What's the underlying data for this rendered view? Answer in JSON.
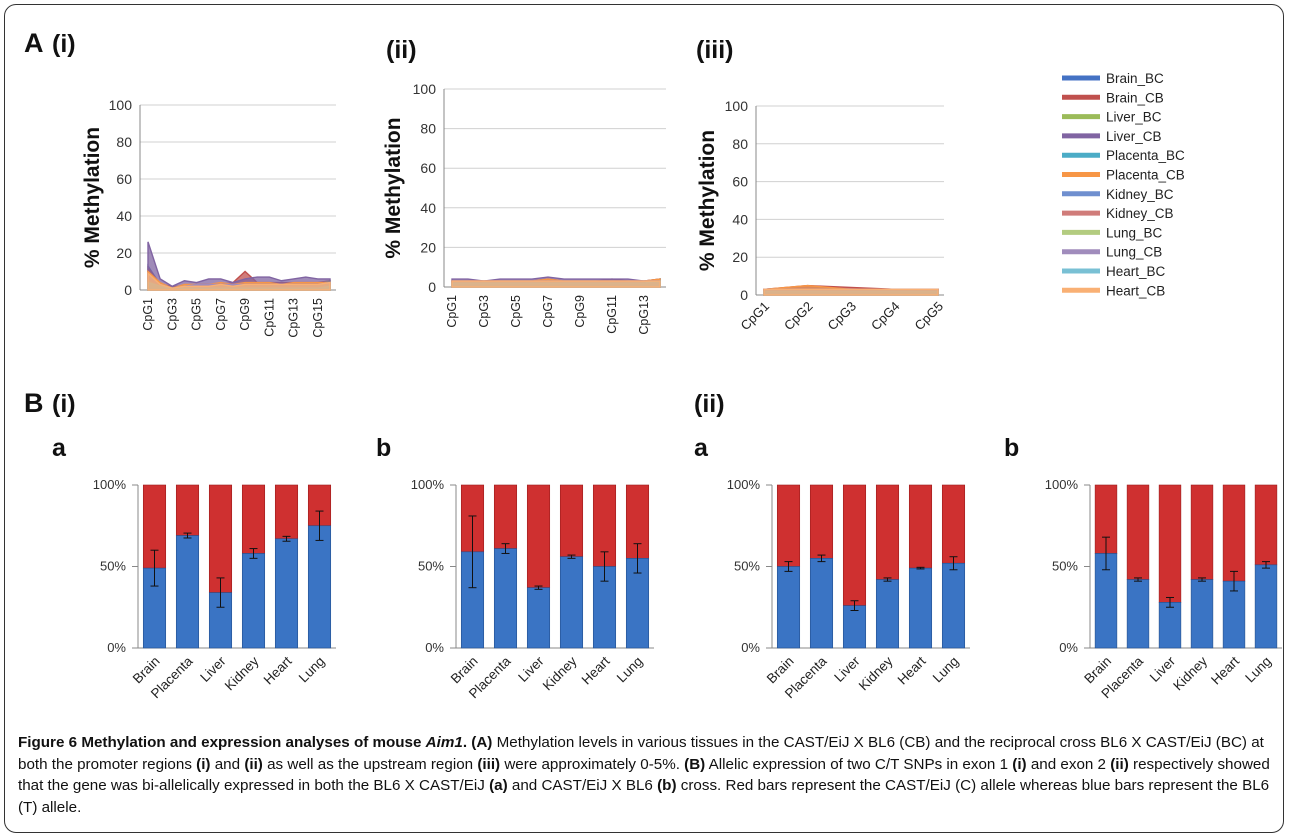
{
  "panels": {
    "A_label": "A",
    "A_i": "(i)",
    "A_ii": "(ii)",
    "A_iii": "(iii)",
    "B_label": "B",
    "B_i": "(i)",
    "B_ii": "(ii)",
    "sub_a": "a",
    "sub_b": "b"
  },
  "caption": {
    "fig": "Figure 6",
    "title_pre": "Methylation and expression analyses of mouse ",
    "title_gene": "Aim1",
    "title_post": ".",
    "A_tag": "(A)",
    "A_text1": "Methylation levels in various tissues in the CAST/EiJ X BL6 (CB) and the reciprocal cross BL6 X CAST/EiJ (BC) at both the promoter regions",
    "i_tag": "(i)",
    "and1": "and",
    "ii_tag": "(ii)",
    "A_text2": "as well as the upstream region",
    "iii_tag": "(iii)",
    "A_text3": "were approximately 0-5%.",
    "B_tag": "(B)",
    "B_text1": "Allelic expression of two C/T SNPs in exon 1",
    "i2_tag": "(i)",
    "and2": "and exon 2",
    "ii2_tag": "(ii)",
    "B_text2": "respectively showed that the gene was bi-allelically expressed in both the BL6 X CAST/EiJ",
    "a_tag": "(a)",
    "and3": "and CAST/EiJ X BL6",
    "b_tag": "(b)",
    "B_text3": "cross. Red bars represent the CAST/EiJ (C) allele whereas blue bars represent the BL6 (T) allele."
  },
  "colors": {
    "frame": "#333333",
    "grid": "#d0d0d0",
    "axis": "#888888",
    "bar_blue": "#3a74c4",
    "bar_blue_dark": "#24508f",
    "bar_red": "#cf3030",
    "bar_red_dark": "#9c1c1c"
  },
  "chart_data": [
    {
      "id": "A-i",
      "type": "area",
      "ylabel": "% Methylation",
      "ylim": [
        0,
        100
      ],
      "yticks": [
        0,
        20,
        40,
        60,
        80,
        100
      ],
      "categories": [
        "CpG1",
        "CpG2",
        "CpG3",
        "CpG4",
        "CpG5",
        "CpG6",
        "CpG7",
        "CpG8",
        "CpG9",
        "CpG10",
        "CpG11",
        "CpG12",
        "CpG13",
        "CpG14",
        "CpG15",
        "CpG16"
      ],
      "tick_labels": [
        "CpG1",
        "",
        "CpG3",
        "",
        "CpG5",
        "",
        "CpG7",
        "",
        "CpG9",
        "",
        "CpG11",
        "",
        "CpG13",
        "",
        "CpG15",
        ""
      ],
      "series": [
        {
          "name": "Brain_BC",
          "color": "#4472c4",
          "values": [
            13,
            3,
            1,
            2,
            3,
            3,
            3,
            3,
            3,
            3,
            3,
            3,
            3,
            3,
            3,
            4
          ]
        },
        {
          "name": "Brain_CB",
          "color": "#c0504d",
          "values": [
            12,
            3,
            2,
            2,
            3,
            3,
            3,
            4,
            10,
            4,
            4,
            4,
            4,
            4,
            4,
            5
          ]
        },
        {
          "name": "Liver_BC",
          "color": "#9bbb59",
          "values": [
            5,
            2,
            1,
            2,
            2,
            2,
            2,
            2,
            3,
            3,
            2,
            2,
            2,
            2,
            3,
            5
          ]
        },
        {
          "name": "Liver_CB",
          "color": "#8064a2",
          "values": [
            26,
            6,
            2,
            5,
            4,
            6,
            6,
            4,
            6,
            7,
            7,
            5,
            6,
            7,
            6,
            6
          ]
        },
        {
          "name": "Placenta_BC",
          "color": "#4bacc6",
          "values": [
            8,
            2,
            1,
            1,
            1,
            1,
            2,
            1,
            1,
            1,
            1,
            1,
            1,
            1,
            1,
            3
          ]
        },
        {
          "name": "Placenta_CB",
          "color": "#f79646",
          "values": [
            10,
            4,
            1,
            3,
            3,
            3,
            4,
            3,
            4,
            4,
            4,
            3,
            4,
            4,
            4,
            4
          ]
        },
        {
          "name": "Kidney_BC",
          "color": "#6f8fcf",
          "values": [
            6,
            3,
            1,
            2,
            2,
            2,
            3,
            2,
            3,
            3,
            3,
            3,
            3,
            3,
            3,
            4
          ]
        },
        {
          "name": "Kidney_CB",
          "color": "#d07c7a",
          "values": [
            7,
            3,
            1,
            2,
            2,
            3,
            3,
            3,
            3,
            3,
            3,
            3,
            3,
            3,
            3,
            4
          ]
        },
        {
          "name": "Lung_BC",
          "color": "#b3cc80",
          "values": [
            5,
            2,
            1,
            2,
            2,
            2,
            2,
            2,
            2,
            2,
            2,
            2,
            2,
            2,
            2,
            4
          ]
        },
        {
          "name": "Lung_CB",
          "color": "#a08cbc",
          "values": [
            8,
            3,
            1,
            2,
            3,
            3,
            3,
            3,
            3,
            3,
            3,
            3,
            3,
            3,
            3,
            4
          ]
        },
        {
          "name": "Heart_BC",
          "color": "#79c0d4",
          "values": [
            4,
            2,
            1,
            1,
            1,
            1,
            1,
            1,
            1,
            1,
            1,
            1,
            1,
            1,
            1,
            2
          ]
        },
        {
          "name": "Heart_CB",
          "color": "#f9b074",
          "values": [
            9,
            3,
            1,
            2,
            2,
            2,
            3,
            2,
            3,
            3,
            3,
            3,
            3,
            3,
            3,
            4
          ]
        }
      ]
    },
    {
      "id": "A-ii",
      "type": "area",
      "ylabel": "% Methylation",
      "ylim": [
        0,
        100
      ],
      "yticks": [
        0,
        20,
        40,
        60,
        80,
        100
      ],
      "categories": [
        "CpG1",
        "CpG2",
        "CpG3",
        "CpG4",
        "CpG5",
        "CpG6",
        "CpG7",
        "CpG8",
        "CpG9",
        "CpG10",
        "CpG11",
        "CpG12",
        "CpG13",
        "CpG14"
      ],
      "tick_labels": [
        "CpG1",
        "",
        "CpG3",
        "",
        "CpG5",
        "",
        "CpG7",
        "",
        "CpG9",
        "",
        "CpG11",
        "",
        "CpG13",
        ""
      ],
      "series": [
        {
          "name": "Brain_BC",
          "color": "#4472c4",
          "values": [
            3,
            3,
            3,
            3,
            3,
            3,
            4,
            3,
            3,
            3,
            3,
            3,
            3,
            3
          ]
        },
        {
          "name": "Brain_CB",
          "color": "#c0504d",
          "values": [
            3,
            3,
            3,
            3,
            3,
            3,
            4,
            3,
            3,
            3,
            4,
            3,
            3,
            4
          ]
        },
        {
          "name": "Liver_BC",
          "color": "#9bbb59",
          "values": [
            2,
            2,
            2,
            2,
            2,
            2,
            3,
            2,
            2,
            2,
            2,
            2,
            2,
            3
          ]
        },
        {
          "name": "Liver_CB",
          "color": "#8064a2",
          "values": [
            4,
            4,
            3,
            4,
            4,
            4,
            5,
            4,
            4,
            4,
            4,
            4,
            3,
            4
          ]
        },
        {
          "name": "Placenta_BC",
          "color": "#4bacc6",
          "values": [
            2,
            2,
            2,
            2,
            2,
            2,
            3,
            2,
            2,
            2,
            2,
            2,
            2,
            4
          ]
        },
        {
          "name": "Placenta_CB",
          "color": "#f79646",
          "values": [
            3,
            3,
            3,
            3,
            3,
            3,
            4,
            3,
            3,
            3,
            3,
            3,
            3,
            4
          ]
        },
        {
          "name": "Kidney_BC",
          "color": "#6f8fcf",
          "values": [
            3,
            3,
            2,
            3,
            3,
            3,
            3,
            3,
            3,
            3,
            3,
            3,
            3,
            3
          ]
        },
        {
          "name": "Kidney_CB",
          "color": "#d07c7a",
          "values": [
            3,
            3,
            3,
            3,
            3,
            3,
            3,
            3,
            3,
            3,
            3,
            3,
            3,
            3
          ]
        },
        {
          "name": "Lung_BC",
          "color": "#b3cc80",
          "values": [
            2,
            2,
            2,
            2,
            2,
            2,
            3,
            2,
            2,
            2,
            2,
            2,
            2,
            3
          ]
        },
        {
          "name": "Lung_CB",
          "color": "#a08cbc",
          "values": [
            3,
            3,
            3,
            3,
            3,
            3,
            3,
            3,
            3,
            3,
            3,
            3,
            3,
            3
          ]
        },
        {
          "name": "Heart_BC",
          "color": "#79c0d4",
          "values": [
            2,
            2,
            2,
            2,
            2,
            2,
            2,
            2,
            2,
            2,
            2,
            2,
            2,
            3
          ]
        },
        {
          "name": "Heart_CB",
          "color": "#f9b074",
          "values": [
            3,
            3,
            3,
            3,
            3,
            3,
            3,
            3,
            3,
            3,
            3,
            3,
            3,
            3
          ]
        }
      ]
    },
    {
      "id": "A-iii",
      "type": "area",
      "ylabel": "% Methylation",
      "ylim": [
        0,
        100
      ],
      "yticks": [
        0,
        20,
        40,
        60,
        80,
        100
      ],
      "categories": [
        "CpG1",
        "CpG2",
        "CpG3",
        "CpG4",
        "CpG5"
      ],
      "tick_labels": [
        "CpG1",
        "CpG2",
        "CpG3",
        "CpG4",
        "CpG5"
      ],
      "series": [
        {
          "name": "Brain_BC",
          "color": "#4472c4",
          "values": [
            3,
            4,
            3,
            3,
            3
          ]
        },
        {
          "name": "Brain_CB",
          "color": "#c0504d",
          "values": [
            3,
            5,
            4,
            3,
            3
          ]
        },
        {
          "name": "Liver_BC",
          "color": "#9bbb59",
          "values": [
            2,
            3,
            3,
            2,
            2
          ]
        },
        {
          "name": "Liver_CB",
          "color": "#8064a2",
          "values": [
            3,
            4,
            3,
            3,
            3
          ]
        },
        {
          "name": "Placenta_BC",
          "color": "#4bacc6",
          "values": [
            2,
            2,
            2,
            2,
            2
          ]
        },
        {
          "name": "Placenta_CB",
          "color": "#f79646",
          "values": [
            3,
            5,
            3,
            3,
            3
          ]
        },
        {
          "name": "Kidney_BC",
          "color": "#6f8fcf",
          "values": [
            2,
            3,
            3,
            3,
            3
          ]
        },
        {
          "name": "Kidney_CB",
          "color": "#d07c7a",
          "values": [
            3,
            3,
            3,
            3,
            3
          ]
        },
        {
          "name": "Lung_BC",
          "color": "#b3cc80",
          "values": [
            2,
            2,
            2,
            2,
            2
          ]
        },
        {
          "name": "Lung_CB",
          "color": "#a08cbc",
          "values": [
            3,
            3,
            3,
            3,
            3
          ]
        },
        {
          "name": "Heart_BC",
          "color": "#79c0d4",
          "values": [
            2,
            2,
            2,
            2,
            2
          ]
        },
        {
          "name": "Heart_CB",
          "color": "#f9b074",
          "values": [
            3,
            3,
            3,
            3,
            3
          ]
        }
      ],
      "legend": "right"
    },
    {
      "id": "B-i-a",
      "type": "bar",
      "stacked": true,
      "ylim": [
        0,
        100
      ],
      "ytick_labels": [
        "0%",
        "50%",
        "100%"
      ],
      "categories": [
        "Brain",
        "Placenta",
        "Liver",
        "Kidney",
        "Heart",
        "Lung"
      ],
      "blue_values": [
        49,
        69,
        34,
        58,
        67,
        75
      ],
      "blue_err": [
        11,
        1.5,
        9,
        3,
        1.5,
        9
      ]
    },
    {
      "id": "B-i-b",
      "type": "bar",
      "stacked": true,
      "ylim": [
        0,
        100
      ],
      "ytick_labels": [
        "0%",
        "50%",
        "100%"
      ],
      "categories": [
        "Brain",
        "Placenta",
        "Liver",
        "Kidney",
        "Heart",
        "Lung"
      ],
      "blue_values": [
        59,
        61,
        37,
        56,
        50,
        55
      ],
      "blue_err": [
        22,
        3,
        1,
        1,
        9,
        9
      ]
    },
    {
      "id": "B-ii-a",
      "type": "bar",
      "stacked": true,
      "ylim": [
        0,
        100
      ],
      "ytick_labels": [
        "0%",
        "50%",
        "100%"
      ],
      "categories": [
        "Brain",
        "Placenta",
        "Liver",
        "Kidney",
        "Heart",
        "Lung"
      ],
      "blue_values": [
        50,
        55,
        26,
        42,
        49,
        52
      ],
      "blue_err": [
        3,
        2,
        3,
        1,
        0.5,
        4
      ]
    },
    {
      "id": "B-ii-b",
      "type": "bar",
      "stacked": true,
      "ylim": [
        0,
        100
      ],
      "ytick_labels": [
        "0%",
        "50%",
        "100%"
      ],
      "categories": [
        "Brain",
        "Placenta",
        "Liver",
        "Kidney",
        "Heart",
        "Lung"
      ],
      "blue_values": [
        58,
        42,
        28,
        42,
        41,
        51
      ],
      "blue_err": [
        10,
        1,
        3,
        1,
        6,
        2
      ]
    }
  ]
}
